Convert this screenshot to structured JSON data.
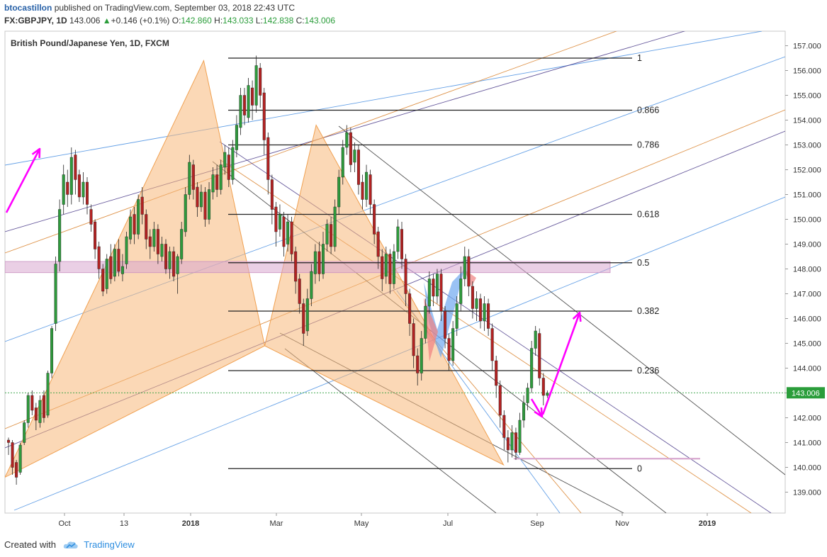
{
  "header": {
    "author": "btocastillon",
    "published_text": "published on TradingView.com, September 03, 2018 22:43 UTC",
    "symbol": "FX:GBPJPY, 1D",
    "last": "143.006",
    "change_arrow": "▲",
    "change": "+0.146 (+0.1%)",
    "o_label": "O:",
    "o_value": "142.860",
    "h_label": "H:",
    "h_value": "143.033",
    "l_label": "L:",
    "l_value": "142.838",
    "c_label": "C:",
    "c_value": "143.006"
  },
  "footer": {
    "created_with": "Created with",
    "brand": "TradingView"
  },
  "chart_data": {
    "type": "candlestick",
    "title": "British Pound/Japanese Yen, 1D, FXCM",
    "ylim": [
      138.4,
      157.4
    ],
    "x_ticks": [
      "Oct",
      "13",
      "2018",
      "Mar",
      "May",
      "Jul",
      "Sep",
      "Nov",
      "2019"
    ],
    "x_tick_bold": [
      "2018",
      "2019"
    ],
    "y_ticks": [
      139,
      140,
      141,
      142,
      143,
      144,
      145,
      146,
      147,
      148,
      149,
      150,
      151,
      152,
      153,
      154,
      155,
      156,
      157
    ],
    "last_price": 143.006,
    "last_price_label": "143.006",
    "colors": {
      "up": "#2e9a3c",
      "down": "#b22222",
      "fib": "#222222",
      "arrow": "#ff00ff",
      "pattern": "#f7b87a",
      "pattern_blue": "#6fa8f0",
      "zone": "#d8a8cf",
      "pitch_blue": "#4a90e2",
      "pitch_orange": "#d9802a",
      "pitch_purple": "#4b3b8a"
    },
    "fib_levels": [
      {
        "label": "1",
        "value": 156.5
      },
      {
        "label": "0.866",
        "value": 154.4
      },
      {
        "label": "0.786",
        "value": 153.0
      },
      {
        "label": "0.618",
        "value": 150.2
      },
      {
        "label": "0.5",
        "value": 148.25
      },
      {
        "label": "0.382",
        "value": 146.3
      },
      {
        "label": "0.236",
        "value": 143.9
      },
      {
        "label": "0",
        "value": 139.95
      }
    ],
    "supply_zone": [
      147.85,
      148.3
    ],
    "demand_line": 140.35,
    "harmonic_pattern": [
      {
        "t": 0.0,
        "p": 139.6
      },
      {
        "t": 0.228,
        "p": 156.4
      },
      {
        "t": 0.298,
        "p": 144.9
      },
      {
        "t": 0.357,
        "p": 153.8
      },
      {
        "t": 0.572,
        "p": 140.1
      }
    ],
    "candles": [
      [
        141.1,
        141.0,
        140.5,
        141.2
      ],
      [
        141.0,
        140.0,
        139.7,
        141.1
      ],
      [
        140.2,
        139.6,
        139.3,
        140.3
      ],
      [
        139.8,
        140.9,
        139.7,
        141.0
      ],
      [
        141.0,
        141.8,
        140.9,
        141.9
      ],
      [
        141.8,
        142.9,
        141.6,
        143.0
      ],
      [
        142.9,
        142.3,
        142.1,
        143.1
      ],
      [
        142.4,
        141.9,
        141.5,
        142.6
      ],
      [
        141.8,
        142.7,
        141.6,
        142.9
      ],
      [
        142.9,
        142.0,
        141.8,
        143.1
      ],
      [
        142.1,
        143.8,
        142.0,
        143.9
      ],
      [
        143.8,
        145.6,
        143.6,
        145.7
      ],
      [
        145.8,
        148.2,
        145.5,
        148.5
      ],
      [
        148.3,
        150.4,
        147.9,
        150.8
      ],
      [
        150.6,
        151.8,
        150.2,
        152.2
      ],
      [
        151.5,
        151.0,
        150.5,
        152.0
      ],
      [
        151.0,
        152.5,
        150.6,
        152.9
      ],
      [
        152.6,
        151.6,
        151.0,
        152.8
      ],
      [
        151.8,
        150.9,
        150.7,
        152.0
      ],
      [
        150.9,
        151.5,
        150.6,
        151.9
      ],
      [
        151.5,
        150.6,
        150.2,
        151.7
      ],
      [
        150.4,
        149.8,
        149.5,
        150.6
      ],
      [
        149.9,
        148.8,
        148.4,
        150.0
      ],
      [
        148.9,
        148.0,
        147.6,
        149.1
      ],
      [
        148.0,
        147.1,
        146.9,
        148.2
      ],
      [
        147.2,
        148.4,
        147.0,
        148.6
      ],
      [
        148.5,
        147.6,
        147.4,
        149.0
      ],
      [
        147.7,
        148.8,
        147.5,
        149.0
      ],
      [
        148.8,
        147.9,
        147.7,
        149.2
      ],
      [
        147.8,
        148.1,
        147.5,
        148.6
      ],
      [
        148.2,
        149.3,
        148.0,
        149.5
      ],
      [
        149.2,
        150.1,
        149.0,
        150.4
      ],
      [
        150.2,
        149.4,
        149.0,
        150.5
      ],
      [
        149.4,
        150.8,
        149.2,
        151.0
      ],
      [
        150.9,
        150.2,
        149.8,
        151.3
      ],
      [
        150.2,
        149.2,
        148.8,
        150.4
      ],
      [
        149.3,
        148.9,
        148.4,
        149.6
      ],
      [
        148.9,
        149.6,
        148.7,
        149.9
      ],
      [
        149.6,
        148.6,
        148.2,
        149.8
      ],
      [
        148.5,
        149.0,
        148.3,
        149.3
      ],
      [
        149.0,
        148.0,
        147.8,
        149.2
      ],
      [
        148.0,
        148.7,
        147.6,
        148.9
      ],
      [
        148.7,
        147.7,
        147.5,
        148.9
      ],
      [
        147.8,
        148.5,
        147.0,
        148.6
      ],
      [
        148.4,
        149.6,
        148.2,
        149.9
      ],
      [
        149.5,
        151.0,
        149.3,
        151.3
      ],
      [
        151.0,
        152.3,
        150.8,
        152.6
      ],
      [
        152.2,
        151.2,
        150.8,
        152.4
      ],
      [
        151.3,
        150.5,
        150.1,
        151.5
      ],
      [
        150.5,
        151.1,
        150.3,
        151.4
      ],
      [
        151.1,
        150.0,
        149.7,
        151.3
      ],
      [
        150.0,
        151.2,
        149.8,
        151.5
      ],
      [
        151.1,
        151.8,
        150.8,
        152.1
      ],
      [
        151.8,
        151.2,
        150.9,
        152.2
      ],
      [
        151.2,
        152.2,
        151.0,
        152.4
      ],
      [
        152.1,
        152.7,
        151.8,
        153.0
      ],
      [
        152.6,
        151.6,
        151.3,
        152.9
      ],
      [
        151.6,
        152.9,
        151.4,
        153.2
      ],
      [
        152.8,
        153.8,
        152.5,
        154.2
      ],
      [
        153.7,
        155.0,
        153.4,
        155.3
      ],
      [
        155.0,
        154.2,
        153.8,
        155.3
      ],
      [
        154.1,
        155.4,
        153.9,
        155.7
      ],
      [
        155.3,
        154.6,
        154.0,
        155.6
      ],
      [
        154.6,
        156.2,
        154.3,
        156.6
      ],
      [
        156.1,
        155.0,
        154.5,
        156.3
      ],
      [
        155.1,
        153.2,
        152.6,
        155.3
      ],
      [
        153.3,
        151.6,
        151.0,
        153.5
      ],
      [
        151.6,
        150.4,
        149.8,
        151.8
      ],
      [
        150.5,
        149.5,
        148.9,
        150.7
      ],
      [
        149.6,
        150.2,
        149.3,
        150.6
      ],
      [
        150.1,
        148.9,
        148.5,
        150.3
      ],
      [
        149.0,
        149.9,
        148.7,
        150.2
      ],
      [
        149.9,
        148.6,
        148.3,
        150.1
      ],
      [
        148.7,
        147.5,
        147.0,
        148.9
      ],
      [
        147.6,
        146.6,
        146.2,
        147.8
      ],
      [
        146.6,
        145.4,
        144.9,
        146.8
      ],
      [
        145.5,
        146.8,
        145.3,
        147.2
      ],
      [
        146.8,
        147.9,
        146.5,
        148.2
      ],
      [
        147.8,
        148.7,
        147.4,
        149.0
      ],
      [
        148.7,
        147.8,
        147.5,
        149.1
      ],
      [
        147.8,
        149.0,
        147.6,
        149.5
      ],
      [
        149.0,
        149.8,
        148.7,
        150.0
      ],
      [
        149.8,
        148.9,
        148.6,
        150.1
      ],
      [
        148.9,
        150.5,
        148.7,
        150.8
      ],
      [
        150.5,
        151.7,
        150.2,
        152.0
      ],
      [
        151.7,
        152.9,
        151.4,
        153.2
      ],
      [
        152.9,
        153.5,
        152.6,
        153.8
      ],
      [
        153.5,
        152.2,
        151.9,
        153.7
      ],
      [
        152.3,
        152.8,
        151.9,
        153.1
      ],
      [
        152.8,
        151.4,
        151.0,
        153.0
      ],
      [
        151.5,
        150.8,
        150.4,
        151.8
      ],
      [
        150.8,
        151.9,
        150.5,
        152.2
      ],
      [
        151.8,
        150.6,
        150.2,
        152.0
      ],
      [
        150.6,
        149.4,
        149.0,
        150.8
      ],
      [
        149.5,
        148.5,
        148.0,
        149.7
      ],
      [
        148.5,
        147.6,
        147.1,
        148.8
      ],
      [
        147.7,
        148.6,
        147.4,
        148.9
      ],
      [
        148.6,
        147.4,
        147.0,
        148.8
      ],
      [
        147.4,
        148.7,
        147.2,
        149.0
      ],
      [
        148.7,
        149.7,
        148.4,
        150.0
      ],
      [
        149.6,
        148.4,
        148.0,
        149.9
      ],
      [
        148.4,
        147.0,
        146.5,
        148.6
      ],
      [
        147.0,
        145.8,
        145.3,
        147.2
      ],
      [
        145.8,
        144.5,
        144.0,
        146.0
      ],
      [
        144.5,
        143.8,
        143.3,
        144.8
      ],
      [
        143.8,
        145.2,
        143.5,
        145.5
      ],
      [
        145.2,
        146.5,
        145.0,
        146.8
      ],
      [
        146.5,
        147.6,
        146.2,
        147.9
      ],
      [
        147.6,
        146.9,
        146.5,
        147.8
      ],
      [
        146.9,
        147.8,
        146.6,
        148.0
      ],
      [
        147.8,
        146.3,
        145.9,
        148.0
      ],
      [
        146.3,
        145.2,
        144.8,
        146.5
      ],
      [
        145.2,
        144.3,
        143.9,
        145.4
      ],
      [
        144.3,
        145.6,
        144.1,
        145.9
      ],
      [
        145.6,
        146.6,
        145.3,
        146.9
      ],
      [
        146.6,
        147.6,
        146.3,
        148.1
      ],
      [
        147.6,
        148.5,
        147.3,
        148.9
      ],
      [
        148.5,
        147.3,
        146.9,
        148.8
      ],
      [
        147.3,
        146.4,
        146.0,
        147.5
      ],
      [
        146.4,
        146.8,
        145.9,
        147.1
      ],
      [
        146.8,
        145.9,
        145.6,
        147.0
      ],
      [
        145.9,
        146.6,
        145.5,
        146.9
      ],
      [
        146.6,
        145.6,
        145.3,
        146.8
      ],
      [
        145.6,
        144.3,
        143.9,
        145.8
      ],
      [
        144.3,
        143.3,
        142.8,
        144.5
      ],
      [
        143.3,
        142.1,
        141.6,
        143.5
      ],
      [
        142.1,
        141.2,
        140.7,
        142.3
      ],
      [
        141.2,
        140.7,
        140.2,
        141.5
      ],
      [
        140.7,
        141.4,
        140.4,
        141.7
      ],
      [
        141.4,
        140.6,
        140.3,
        141.6
      ],
      [
        140.6,
        141.9,
        140.5,
        142.2
      ],
      [
        141.9,
        142.6,
        141.6,
        142.9
      ],
      [
        142.6,
        143.2,
        142.3,
        143.4
      ],
      [
        143.2,
        144.8,
        143.0,
        145.1
      ],
      [
        144.8,
        145.5,
        144.5,
        145.7
      ],
      [
        145.4,
        143.6,
        143.3,
        145.6
      ],
      [
        143.6,
        142.9,
        142.5,
        143.8
      ],
      [
        142.9,
        143.0,
        142.8,
        143.1
      ]
    ]
  }
}
